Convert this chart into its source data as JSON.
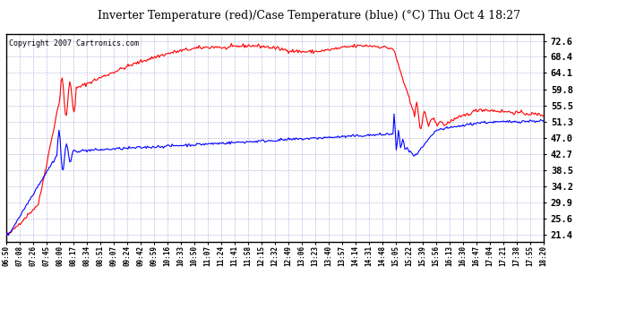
{
  "title": "Inverter Temperature (red)/Case Temperature (blue) (°C) Thu Oct 4 18:27",
  "copyright": "Copyright 2007 Cartronics.com",
  "y_ticks": [
    21.4,
    25.6,
    29.9,
    34.2,
    38.5,
    42.7,
    47.0,
    51.3,
    55.5,
    59.8,
    64.1,
    68.4,
    72.6
  ],
  "ylim": [
    19.5,
    74.5
  ],
  "bg_color": "#ffffff",
  "grid_color": "#8888cc",
  "x_labels": [
    "06:50",
    "07:08",
    "07:26",
    "07:45",
    "08:00",
    "08:17",
    "08:34",
    "08:51",
    "09:07",
    "09:24",
    "09:42",
    "09:59",
    "10:16",
    "10:33",
    "10:50",
    "11:07",
    "11:24",
    "11:41",
    "11:58",
    "12:15",
    "12:32",
    "12:49",
    "13:06",
    "13:23",
    "13:40",
    "13:57",
    "14:14",
    "14:31",
    "14:48",
    "15:05",
    "15:22",
    "15:39",
    "15:56",
    "16:13",
    "16:30",
    "16:47",
    "17:04",
    "17:21",
    "17:38",
    "17:55",
    "18:20"
  ]
}
